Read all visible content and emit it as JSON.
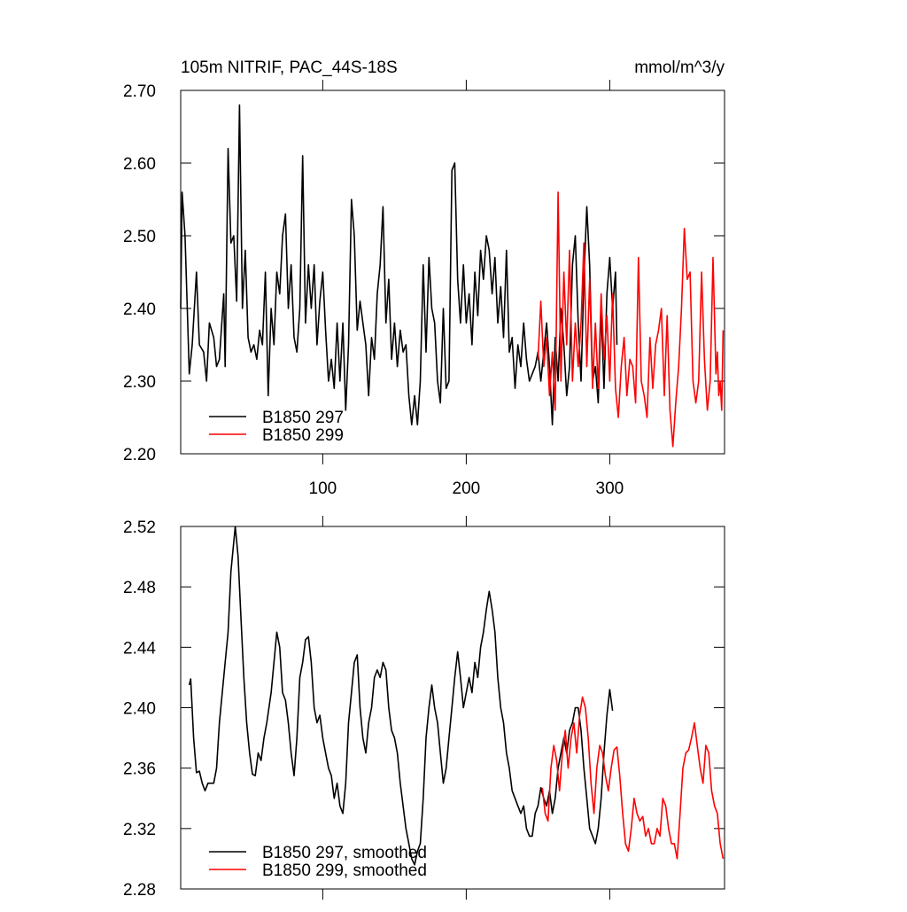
{
  "chart_data": [
    {
      "type": "line",
      "title": "105m NITRIF, PAC_44S-18S",
      "subtitle": "mmol/m^3/y",
      "xlim": [
        1,
        380
      ],
      "xticks": [
        100,
        200,
        300
      ],
      "ylim": [
        2.2,
        2.7
      ],
      "yticks": [
        {
          "value": 2.2,
          "label": "2.20"
        },
        {
          "value": 2.3,
          "label": "2.30"
        },
        {
          "value": 2.4,
          "label": "2.40"
        },
        {
          "value": 2.5,
          "label": "2.50"
        },
        {
          "value": 2.6,
          "label": "2.60"
        },
        {
          "value": 2.7,
          "label": "2.70"
        }
      ],
      "legend": "lower left",
      "series": [
        {
          "name": "B1850 297",
          "color": "#000000",
          "x": [
            1,
            2,
            4,
            7,
            9,
            12,
            14,
            17,
            19,
            21,
            24,
            26,
            28,
            31,
            32,
            34,
            36,
            38,
            40,
            42,
            44,
            46,
            48,
            50,
            52,
            54,
            56,
            58,
            60,
            62,
            64,
            66,
            68,
            70,
            72,
            74,
            76,
            78,
            80,
            82,
            84,
            86,
            88,
            90,
            92,
            94,
            96,
            98,
            100,
            102,
            104,
            106,
            108,
            110,
            112,
            114,
            116,
            118,
            120,
            122,
            124,
            126,
            128,
            130,
            132,
            134,
            136,
            138,
            140,
            142,
            144,
            146,
            148,
            150,
            152,
            154,
            156,
            158,
            160,
            162,
            164,
            166,
            168,
            170,
            172,
            174,
            176,
            178,
            180,
            182,
            184,
            186,
            188,
            190,
            192,
            194,
            196,
            198,
            200,
            202,
            204,
            206,
            208,
            210,
            212,
            214,
            216,
            218,
            220,
            222,
            224,
            226,
            228,
            230,
            232,
            234,
            236,
            238,
            240,
            242,
            244,
            246,
            248,
            250,
            252,
            254,
            256,
            258,
            260,
            262,
            264,
            266,
            268,
            270,
            272,
            274,
            276,
            278,
            280,
            282,
            284,
            286,
            288,
            290,
            292,
            294,
            296,
            298,
            300,
            302,
            304,
            305
          ],
          "values": [
            2.4,
            2.56,
            2.5,
            2.31,
            2.35,
            2.45,
            2.35,
            2.34,
            2.3,
            2.38,
            2.36,
            2.32,
            2.33,
            2.42,
            2.32,
            2.62,
            2.49,
            2.5,
            2.41,
            2.68,
            2.4,
            2.48,
            2.36,
            2.34,
            2.35,
            2.33,
            2.37,
            2.35,
            2.45,
            2.28,
            2.4,
            2.35,
            2.45,
            2.42,
            2.5,
            2.53,
            2.4,
            2.46,
            2.36,
            2.34,
            2.4,
            2.61,
            2.38,
            2.46,
            2.4,
            2.46,
            2.35,
            2.41,
            2.45,
            2.37,
            2.3,
            2.33,
            2.29,
            2.38,
            2.3,
            2.38,
            2.26,
            2.35,
            2.55,
            2.5,
            2.37,
            2.41,
            2.38,
            2.35,
            2.28,
            2.36,
            2.33,
            2.42,
            2.46,
            2.54,
            2.38,
            2.44,
            2.33,
            2.38,
            2.32,
            2.37,
            2.34,
            2.35,
            2.28,
            2.24,
            2.28,
            2.24,
            2.3,
            2.46,
            2.34,
            2.47,
            2.4,
            2.38,
            2.3,
            2.27,
            2.4,
            2.29,
            2.3,
            2.59,
            2.6,
            2.44,
            2.38,
            2.46,
            2.38,
            2.42,
            2.35,
            2.45,
            2.39,
            2.48,
            2.44,
            2.5,
            2.48,
            2.42,
            2.47,
            2.38,
            2.43,
            2.36,
            2.48,
            2.34,
            2.36,
            2.29,
            2.35,
            2.32,
            2.38,
            2.33,
            2.3,
            2.31,
            2.32,
            2.34,
            2.3,
            2.34,
            2.38,
            2.32,
            2.24,
            2.36,
            2.3,
            2.4,
            2.35,
            2.28,
            2.32,
            2.46,
            2.5,
            2.38,
            2.3,
            2.44,
            2.54,
            2.46,
            2.3,
            2.32,
            2.27,
            2.4,
            2.29,
            2.42,
            2.47,
            2.4,
            2.45,
            2.35
          ]
        },
        {
          "name": "B1850 299",
          "color": "#ff0000",
          "x": [
            250,
            252,
            254,
            256,
            258,
            260,
            262,
            264,
            266,
            268,
            270,
            272,
            274,
            276,
            278,
            280,
            282,
            284,
            286,
            288,
            290,
            292,
            294,
            296,
            298,
            300,
            302,
            304,
            306,
            308,
            310,
            312,
            314,
            316,
            318,
            320,
            322,
            324,
            326,
            328,
            330,
            332,
            334,
            336,
            338,
            340,
            342,
            344,
            346,
            348,
            350,
            352,
            354,
            356,
            358,
            360,
            362,
            364,
            366,
            368,
            370,
            372,
            374,
            375,
            376,
            377,
            378,
            379
          ],
          "values": [
            2.33,
            2.41,
            2.32,
            2.36,
            2.28,
            2.34,
            2.26,
            2.56,
            2.3,
            2.45,
            2.35,
            2.48,
            2.3,
            2.38,
            2.32,
            2.38,
            2.49,
            2.32,
            2.44,
            2.29,
            2.38,
            2.29,
            2.42,
            2.33,
            2.39,
            2.3,
            2.42,
            2.29,
            2.25,
            2.32,
            2.36,
            2.28,
            2.33,
            2.32,
            2.27,
            2.47,
            2.3,
            2.28,
            2.25,
            2.36,
            2.29,
            2.35,
            2.37,
            2.4,
            2.28,
            2.39,
            2.26,
            2.21,
            2.27,
            2.32,
            2.4,
            2.51,
            2.44,
            2.45,
            2.3,
            2.27,
            2.3,
            2.45,
            2.33,
            2.26,
            2.3,
            2.47,
            2.31,
            2.34,
            2.28,
            2.3,
            2.26,
            2.37
          ]
        }
      ]
    },
    {
      "type": "line",
      "xlim": [
        1,
        380
      ],
      "ylim": [
        2.28,
        2.52
      ],
      "yticks": [
        2.28,
        2.32,
        2.36,
        {
          "value": 2.4,
          "label": "2.40"
        },
        2.44,
        2.48,
        2.52
      ],
      "legend": "lower left",
      "series": [
        {
          "name": "B1850 297, smoothed",
          "color": "#000000",
          "x": [
            7,
            8,
            10,
            12,
            14,
            16,
            18,
            20,
            24,
            26,
            28,
            32,
            34,
            36,
            39,
            41,
            43,
            45,
            47,
            49,
            51,
            53,
            55,
            57,
            59,
            61,
            64,
            66,
            68,
            70,
            72,
            74,
            76,
            78,
            80,
            82,
            84,
            86,
            88,
            90,
            92,
            94,
            96,
            98,
            100,
            102,
            104,
            106,
            108,
            110,
            112,
            114,
            116,
            118,
            120,
            122,
            124,
            126,
            128,
            130,
            132,
            134,
            136,
            138,
            140,
            142,
            144,
            146,
            148,
            150,
            152,
            154,
            156,
            158,
            160,
            162,
            164,
            166,
            168,
            170,
            172,
            174,
            176,
            178,
            180,
            182,
            184,
            186,
            188,
            190,
            192,
            194,
            196,
            198,
            200,
            202,
            204,
            206,
            208,
            210,
            212,
            214,
            216,
            218,
            220,
            222,
            224,
            226,
            228,
            230,
            232,
            234,
            236,
            238,
            240,
            242,
            244,
            246,
            248,
            250,
            252,
            254,
            256,
            258,
            260,
            262,
            264,
            266,
            268,
            270,
            272,
            274,
            276,
            278,
            280,
            282,
            284,
            286,
            288,
            290,
            292,
            294,
            296,
            298,
            300,
            302
          ],
          "values": [
            2.415,
            2.419,
            2.38,
            2.357,
            2.358,
            2.35,
            2.345,
            2.35,
            2.35,
            2.36,
            2.39,
            2.43,
            2.45,
            2.49,
            2.52,
            2.5,
            2.46,
            2.42,
            2.39,
            2.37,
            2.356,
            2.355,
            2.37,
            2.365,
            2.38,
            2.39,
            2.41,
            2.43,
            2.45,
            2.44,
            2.41,
            2.405,
            2.39,
            2.37,
            2.355,
            2.38,
            2.42,
            2.43,
            2.445,
            2.447,
            2.43,
            2.4,
            2.39,
            2.395,
            2.38,
            2.37,
            2.36,
            2.355,
            2.34,
            2.35,
            2.335,
            2.33,
            2.35,
            2.39,
            2.41,
            2.43,
            2.435,
            2.4,
            2.38,
            2.37,
            2.39,
            2.4,
            2.42,
            2.425,
            2.42,
            2.43,
            2.425,
            2.4,
            2.385,
            2.38,
            2.37,
            2.35,
            2.335,
            2.32,
            2.31,
            2.3,
            2.296,
            2.305,
            2.31,
            2.34,
            2.38,
            2.4,
            2.415,
            2.4,
            2.39,
            2.37,
            2.35,
            2.36,
            2.38,
            2.4,
            2.42,
            2.437,
            2.42,
            2.4,
            2.41,
            2.42,
            2.41,
            2.43,
            2.42,
            2.44,
            2.45,
            2.465,
            2.477,
            2.465,
            2.45,
            2.42,
            2.4,
            2.39,
            2.37,
            2.36,
            2.345,
            2.34,
            2.335,
            2.33,
            2.335,
            2.32,
            2.315,
            2.315,
            2.33,
            2.335,
            2.347,
            2.34,
            2.335,
            2.345,
            2.33,
            2.34,
            2.36,
            2.37,
            2.38,
            2.37,
            2.385,
            2.39,
            2.4,
            2.4,
            2.385,
            2.36,
            2.34,
            2.32,
            2.315,
            2.31,
            2.32,
            2.34,
            2.37,
            2.395,
            2.412,
            2.398
          ]
        },
        {
          "name": "B1850 299, smoothed",
          "color": "#ff0000",
          "x": [
            253,
            255,
            257,
            259,
            261,
            263,
            265,
            267,
            269,
            271,
            273,
            275,
            277,
            279,
            281,
            283,
            285,
            287,
            289,
            291,
            293,
            295,
            297,
            299,
            301,
            303,
            305,
            307,
            309,
            311,
            313,
            315,
            317,
            319,
            321,
            323,
            325,
            327,
            329,
            331,
            333,
            335,
            337,
            339,
            341,
            343,
            345,
            347,
            349,
            351,
            353,
            355,
            357,
            359,
            361,
            363,
            365,
            367,
            369,
            371,
            373,
            375,
            377,
            379
          ],
          "values": [
            2.347,
            2.33,
            2.325,
            2.36,
            2.375,
            2.365,
            2.345,
            2.37,
            2.385,
            2.36,
            2.38,
            2.39,
            2.37,
            2.395,
            2.407,
            2.4,
            2.38,
            2.35,
            2.33,
            2.36,
            2.375,
            2.37,
            2.355,
            2.345,
            2.36,
            2.372,
            2.374,
            2.355,
            2.33,
            2.31,
            2.305,
            2.32,
            2.34,
            2.33,
            2.325,
            2.328,
            2.315,
            2.32,
            2.31,
            2.31,
            2.32,
            2.315,
            2.34,
            2.335,
            2.32,
            2.31,
            2.31,
            2.3,
            2.33,
            2.36,
            2.37,
            2.372,
            2.38,
            2.39,
            2.375,
            2.36,
            2.35,
            2.375,
            2.37,
            2.345,
            2.335,
            2.33,
            2.31,
            2.3
          ]
        }
      ]
    }
  ]
}
